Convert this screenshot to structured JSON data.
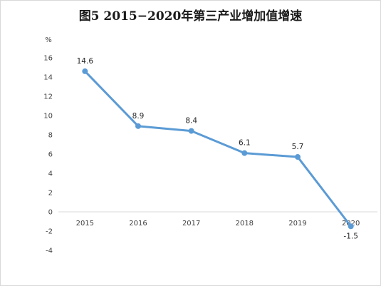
{
  "title": "图5  2015−2020年第三产业增加值增速",
  "chart_data": {
    "type": "line",
    "title": "图5  2015−2020年第三产业增加值增速",
    "xlabel": "",
    "ylabel": "%",
    "categories": [
      "2015",
      "2016",
      "2017",
      "2018",
      "2019",
      "2020"
    ],
    "series": [
      {
        "values": [
          14.6,
          8.9,
          8.4,
          6.1,
          5.7,
          -1.5
        ],
        "color": "#5b9bd5"
      }
    ],
    "data_labels": [
      "14.6",
      "8.9",
      "8.4",
      "6.1",
      "5.7",
      "-1.5"
    ],
    "y_ticks": [
      "-4",
      "-2",
      "0",
      "2",
      "4",
      "6",
      "8",
      "10",
      "12",
      "14",
      "16"
    ],
    "ylim": [
      -4,
      16
    ],
    "grid": false,
    "legend": "none"
  }
}
